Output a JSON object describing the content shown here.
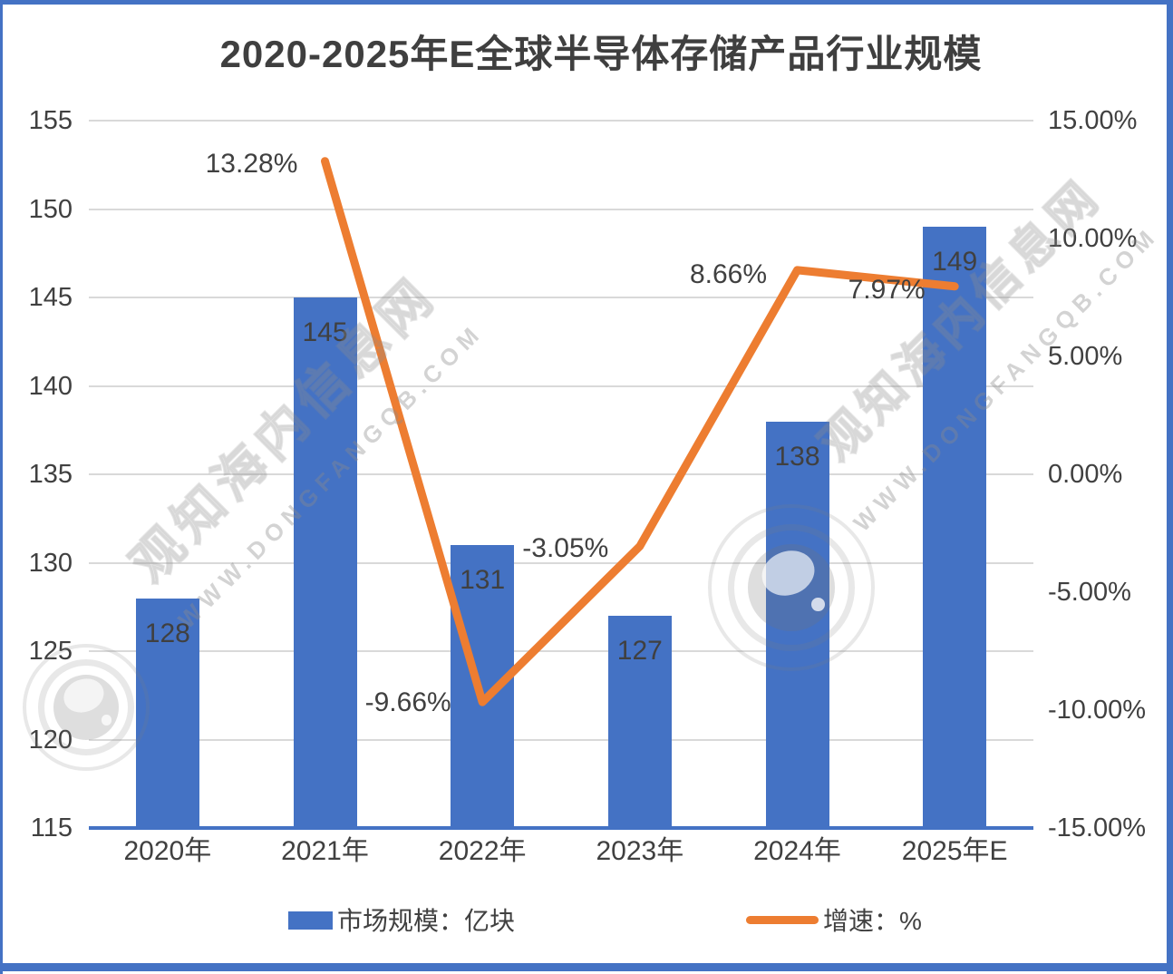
{
  "title": "2020-2025年E全球半导体存储产品行业规模",
  "legend": {
    "market_size_label": "市场规模：亿块",
    "growth_label": "增速：%"
  },
  "watermark": {
    "site_name_cn": "观知海内信息网",
    "site_url": "WWW.DONGFANGQB.COM"
  },
  "colors": {
    "bar": "#4472C4",
    "line": "#ED7D31",
    "grid": "#D9D9D9",
    "axis_line": "#4472C4",
    "text": "#404040",
    "border": "#4472C4"
  },
  "chart_data": {
    "type": "bar",
    "title": "2020-2025年E全球半导体存储产品行业规模",
    "categories": [
      "2020年",
      "2021年",
      "2022年",
      "2023年",
      "2024年",
      "2025年E"
    ],
    "series": [
      {
        "name": "市场规模：亿块",
        "type": "bar",
        "axis": "left",
        "values": [
          128,
          145,
          131,
          127,
          138,
          149
        ],
        "labels": [
          "128",
          "145",
          "131",
          "127",
          "138",
          "149"
        ]
      },
      {
        "name": "增速：%",
        "type": "line",
        "axis": "right",
        "x_indices": [
          1,
          2,
          3,
          4,
          5
        ],
        "values": [
          13.28,
          -9.66,
          -3.05,
          8.66,
          7.97
        ],
        "labels": [
          "13.28%",
          "-9.66%",
          "-3.05%",
          "8.66%",
          "7.97%"
        ],
        "label_offsets": [
          [
            -81,
            3
          ],
          [
            -82,
            1
          ],
          [
            -82,
            3
          ],
          [
            -76,
            5
          ],
          [
            -75,
            4
          ]
        ]
      }
    ],
    "left_axis": {
      "min": 115,
      "max": 155,
      "ticks": [
        155,
        150,
        145,
        140,
        135,
        130,
        125,
        120,
        115
      ]
    },
    "right_axis": {
      "min": -15,
      "max": 15,
      "ticks": [
        "15.00%",
        "10.00%",
        "5.00%",
        "0.00%",
        "-5.00%",
        "-10.00%",
        "-15.00%"
      ]
    },
    "grid": true,
    "legend_position": "bottom"
  }
}
